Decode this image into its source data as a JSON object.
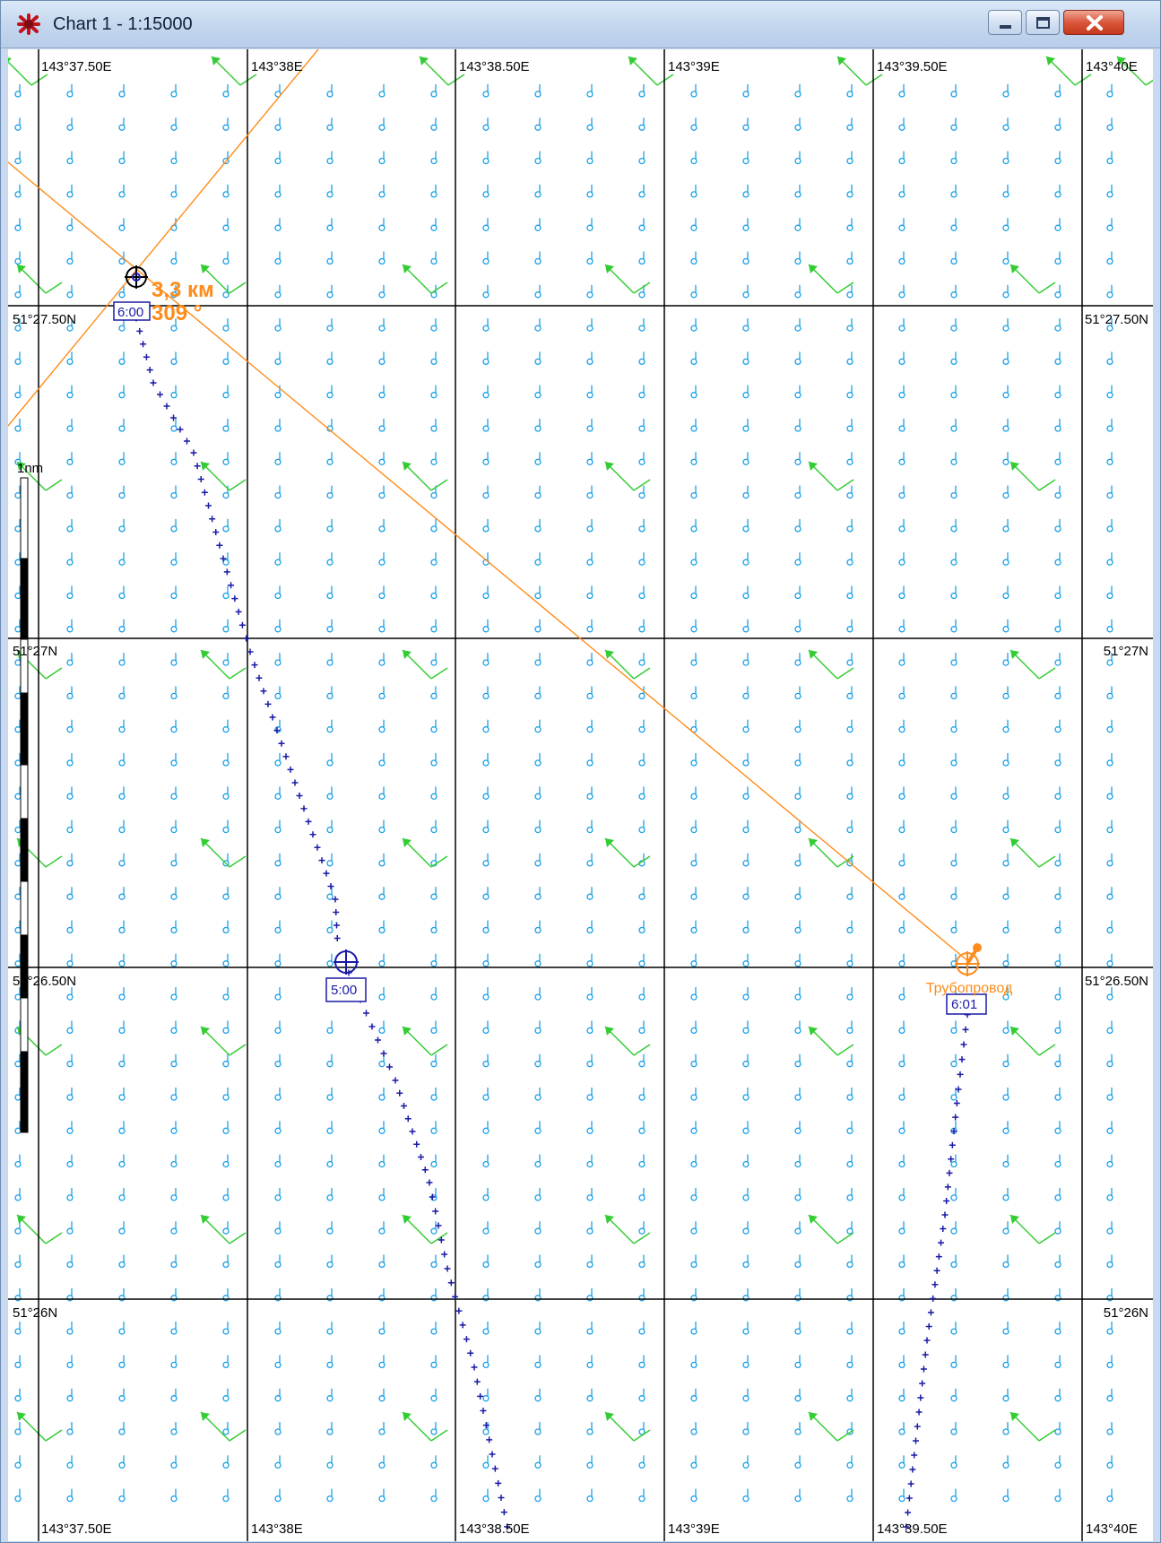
{
  "window": {
    "title": "Chart 1 - 1:15000",
    "icon": "ship-chart-icon"
  },
  "controls": {
    "minimize": "minimize-icon",
    "maximize": "maximize-icon",
    "close": "close-icon"
  },
  "grid": {
    "longitudes": [
      "143°37.50E",
      "143°38E",
      "143°38.50E",
      "143°39E",
      "143°39.50E",
      "143°40E"
    ],
    "latitudes": [
      "51°27.50N",
      "51°27N",
      "51°26.50N",
      "51°26N"
    ]
  },
  "scale_bar": {
    "label": "1nm"
  },
  "bearing": {
    "distance": "3,3 км",
    "angle": "309 °"
  },
  "targets": [
    {
      "time": "6:00"
    },
    {
      "time": "5:00"
    },
    {
      "time": "6:01"
    }
  ],
  "pipeline": {
    "label": "Трубопровод"
  },
  "colors": {
    "grid_line": "#000000",
    "current_symbol": "#1aa0e6",
    "wind_arrow": "#33cc33",
    "track": "#1a1aa6",
    "bearing_line": "#ff8c1a",
    "background": "#ffffff"
  }
}
